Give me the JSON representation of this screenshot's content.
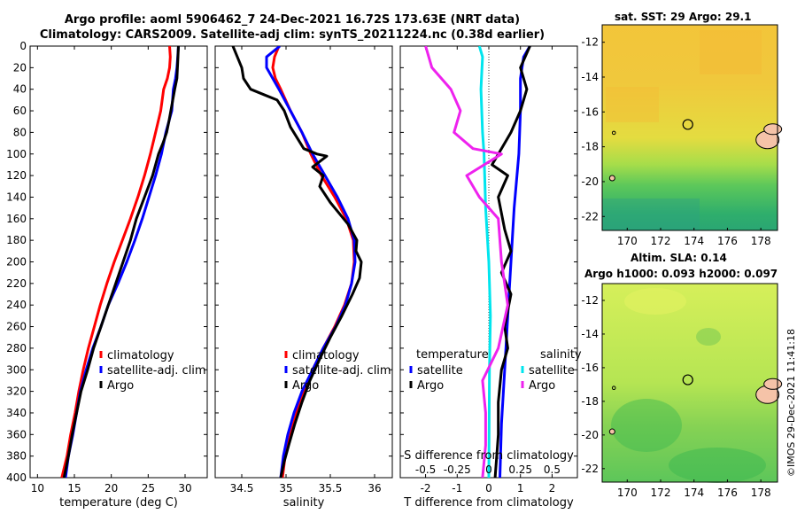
{
  "title_line1": "Argo profile: aoml 5906462_7 24-Dec-2021 16.72S 173.63E (NRT data)",
  "title_line2": "Climatology: CARS2009. Satellite-adj clim: synTS_20211224.nc (0.38d earlier)",
  "copyright": "©IMOS 29-Dec-2021 11:41:18",
  "colors": {
    "climatology": "#ff0000",
    "satellite": "#0000ff",
    "argo": "#000000",
    "t_satellite": "#00e5ee",
    "s_argo": "#ee22ee"
  },
  "chart_data": [
    {
      "type": "line",
      "id": "temperature",
      "xlabel": "temperature (deg C)",
      "ylabel": "",
      "xlim": [
        9,
        33
      ],
      "ylim": [
        400,
        0
      ],
      "xticks": [
        10,
        15,
        20,
        25,
        30
      ],
      "yticks": [
        0,
        20,
        40,
        60,
        80,
        100,
        120,
        140,
        160,
        180,
        200,
        220,
        240,
        260,
        280,
        300,
        320,
        340,
        360,
        380,
        400
      ],
      "legend": [
        "climatology",
        "satellite-adj. clim",
        "Argo"
      ],
      "series": [
        {
          "name": "climatology",
          "color": "#ff0000",
          "points": [
            [
              27.9,
              0
            ],
            [
              28.0,
              10
            ],
            [
              27.9,
              20
            ],
            [
              27.6,
              30
            ],
            [
              27.1,
              40
            ],
            [
              26.7,
              60
            ],
            [
              26.0,
              80
            ],
            [
              25.3,
              100
            ],
            [
              24.5,
              120
            ],
            [
              23.6,
              140
            ],
            [
              22.6,
              160
            ],
            [
              21.5,
              180
            ],
            [
              20.4,
              200
            ],
            [
              19.4,
              220
            ],
            [
              18.5,
              240
            ],
            [
              17.7,
              260
            ],
            [
              16.9,
              280
            ],
            [
              16.2,
              300
            ],
            [
              15.6,
              320
            ],
            [
              15.1,
              340
            ],
            [
              14.5,
              360
            ],
            [
              14.0,
              380
            ],
            [
              13.3,
              400
            ]
          ]
        },
        {
          "name": "satellite-adj. clim",
          "color": "#0000ff",
          "points": [
            [
              29.1,
              0
            ],
            [
              29.0,
              10
            ],
            [
              28.9,
              20
            ],
            [
              28.7,
              30
            ],
            [
              28.4,
              40
            ],
            [
              28.2,
              60
            ],
            [
              27.4,
              80
            ],
            [
              26.8,
              100
            ],
            [
              26.0,
              120
            ],
            [
              25.1,
              140
            ],
            [
              24.2,
              160
            ],
            [
              23.2,
              180
            ],
            [
              22.1,
              200
            ],
            [
              20.9,
              220
            ],
            [
              19.6,
              240
            ],
            [
              18.6,
              260
            ],
            [
              17.5,
              280
            ],
            [
              16.6,
              300
            ],
            [
              15.8,
              320
            ],
            [
              15.3,
              340
            ],
            [
              14.8,
              360
            ],
            [
              14.2,
              380
            ],
            [
              13.8,
              400
            ]
          ]
        },
        {
          "name": "Argo",
          "color": "#000000",
          "points": [
            [
              29.1,
              0
            ],
            [
              29.0,
              15
            ],
            [
              28.9,
              30
            ],
            [
              28.6,
              40
            ],
            [
              28.2,
              55
            ],
            [
              27.8,
              70
            ],
            [
              27.5,
              80
            ],
            [
              27.0,
              90
            ],
            [
              26.4,
              100
            ],
            [
              25.6,
              120
            ],
            [
              24.5,
              140
            ],
            [
              23.4,
              160
            ],
            [
              22.6,
              180
            ],
            [
              21.6,
              200
            ],
            [
              20.6,
              220
            ],
            [
              19.6,
              240
            ],
            [
              18.6,
              260
            ],
            [
              17.6,
              280
            ],
            [
              16.8,
              300
            ],
            [
              15.9,
              320
            ],
            [
              15.3,
              340
            ],
            [
              14.7,
              360
            ],
            [
              14.2,
              380
            ],
            [
              13.6,
              400
            ]
          ]
        }
      ]
    },
    {
      "type": "line",
      "id": "salinity",
      "xlabel": "salinity",
      "xlim": [
        34.2,
        36.2
      ],
      "ylim": [
        400,
        0
      ],
      "xticks": [
        34.5,
        35,
        35.5,
        36
      ],
      "xtick_labels": [
        "34.5",
        "35",
        "35.5",
        "36"
      ],
      "legend": [
        "climatology",
        "satellite-adj. clim",
        "Argo"
      ],
      "series": [
        {
          "name": "climatology",
          "color": "#ff0000",
          "points": [
            [
              34.92,
              0
            ],
            [
              34.87,
              10
            ],
            [
              34.85,
              20
            ],
            [
              34.88,
              30
            ],
            [
              34.94,
              40
            ],
            [
              35.05,
              60
            ],
            [
              35.18,
              80
            ],
            [
              35.28,
              100
            ],
            [
              35.4,
              120
            ],
            [
              35.55,
              140
            ],
            [
              35.68,
              160
            ],
            [
              35.76,
              180
            ],
            [
              35.77,
              200
            ],
            [
              35.74,
              220
            ],
            [
              35.66,
              240
            ],
            [
              35.55,
              260
            ],
            [
              35.42,
              280
            ],
            [
              35.3,
              300
            ],
            [
              35.2,
              320
            ],
            [
              35.12,
              340
            ],
            [
              35.05,
              360
            ],
            [
              34.99,
              380
            ],
            [
              34.96,
              400
            ]
          ]
        },
        {
          "name": "satellite-adj. clim",
          "color": "#0000ff",
          "points": [
            [
              34.93,
              0
            ],
            [
              34.78,
              10
            ],
            [
              34.78,
              20
            ],
            [
              34.85,
              30
            ],
            [
              34.92,
              40
            ],
            [
              35.05,
              60
            ],
            [
              35.18,
              80
            ],
            [
              35.3,
              100
            ],
            [
              35.44,
              120
            ],
            [
              35.58,
              140
            ],
            [
              35.7,
              160
            ],
            [
              35.77,
              180
            ],
            [
              35.78,
              200
            ],
            [
              35.74,
              220
            ],
            [
              35.67,
              240
            ],
            [
              35.56,
              260
            ],
            [
              35.42,
              280
            ],
            [
              35.3,
              300
            ],
            [
              35.18,
              320
            ],
            [
              35.09,
              340
            ],
            [
              35.02,
              360
            ],
            [
              34.97,
              380
            ],
            [
              34.94,
              400
            ]
          ]
        },
        {
          "name": "Argo",
          "color": "#000000",
          "points": [
            [
              34.4,
              0
            ],
            [
              34.45,
              10
            ],
            [
              34.5,
              20
            ],
            [
              34.52,
              30
            ],
            [
              34.6,
              40
            ],
            [
              34.75,
              45
            ],
            [
              34.9,
              50
            ],
            [
              34.98,
              60
            ],
            [
              35.05,
              75
            ],
            [
              35.2,
              95
            ],
            [
              35.35,
              100
            ],
            [
              35.46,
              102
            ],
            [
              35.3,
              112
            ],
            [
              35.42,
              120
            ],
            [
              35.38,
              130
            ],
            [
              35.5,
              145
            ],
            [
              35.6,
              155
            ],
            [
              35.7,
              165
            ],
            [
              35.8,
              180
            ],
            [
              35.79,
              190
            ],
            [
              35.85,
              200
            ],
            [
              35.83,
              215
            ],
            [
              35.75,
              230
            ],
            [
              35.63,
              250
            ],
            [
              35.5,
              270
            ],
            [
              35.38,
              290
            ],
            [
              35.27,
              310
            ],
            [
              35.18,
              330
            ],
            [
              35.1,
              350
            ],
            [
              35.03,
              370
            ],
            [
              34.98,
              385
            ],
            [
              34.94,
              400
            ]
          ]
        }
      ]
    },
    {
      "type": "line",
      "id": "difference",
      "xlabel": "T difference from climatology",
      "xlim": [
        -2.8,
        2.8
      ],
      "ylim": [
        400,
        0
      ],
      "xticks": [
        -2,
        -1,
        0,
        1,
        2
      ],
      "top_label": "S difference from climatology",
      "top_ticks": [
        "-0.5",
        "-0.25",
        "0",
        "0.25",
        "0.5"
      ],
      "legend_temperature": {
        "heading": "temperature",
        "items": [
          "satellite",
          "Argo"
        ]
      },
      "legend_salinity": {
        "heading": "salinity",
        "items": [
          "satellite",
          "Argo"
        ]
      },
      "series": [
        {
          "name": "temperature satellite",
          "color": "#0000ff",
          "points": [
            [
              1.3,
              0
            ],
            [
              1.1,
              10
            ],
            [
              1.0,
              30
            ],
            [
              1.0,
              60
            ],
            [
              0.95,
              100
            ],
            [
              0.8,
              150
            ],
            [
              0.7,
              200
            ],
            [
              0.6,
              250
            ],
            [
              0.5,
              300
            ],
            [
              0.4,
              350
            ],
            [
              0.35,
              400
            ]
          ]
        },
        {
          "name": "temperature Argo",
          "color": "#000000",
          "points": [
            [
              1.3,
              0
            ],
            [
              1.0,
              20
            ],
            [
              1.2,
              40
            ],
            [
              1.0,
              60
            ],
            [
              0.7,
              80
            ],
            [
              0.4,
              95
            ],
            [
              0.1,
              110
            ],
            [
              0.6,
              120
            ],
            [
              0.3,
              140
            ],
            [
              0.5,
              170
            ],
            [
              0.7,
              190
            ],
            [
              0.4,
              210
            ],
            [
              0.7,
              230
            ],
            [
              0.5,
              260
            ],
            [
              0.6,
              280
            ],
            [
              0.4,
              300
            ],
            [
              0.3,
              330
            ],
            [
              0.3,
              360
            ],
            [
              0.2,
              400
            ]
          ]
        },
        {
          "name": "salinity satellite",
          "color": "#00e5ee",
          "points": [
            [
              -0.3,
              0
            ],
            [
              -0.2,
              10
            ],
            [
              -0.25,
              40
            ],
            [
              -0.2,
              80
            ],
            [
              -0.15,
              100
            ],
            [
              -0.1,
              150
            ],
            [
              0.0,
              200
            ],
            [
              0.05,
              250
            ],
            [
              0.02,
              300
            ],
            [
              0.0,
              400
            ]
          ]
        },
        {
          "name": "salinity Argo",
          "color": "#ee22ee",
          "points": [
            [
              -2.0,
              0
            ],
            [
              -1.8,
              20
            ],
            [
              -1.2,
              40
            ],
            [
              -0.9,
              60
            ],
            [
              -1.1,
              80
            ],
            [
              -0.5,
              95
            ],
            [
              0.4,
              100
            ],
            [
              -0.7,
              120
            ],
            [
              -0.3,
              140
            ],
            [
              0.3,
              160
            ],
            [
              0.4,
              200
            ],
            [
              0.6,
              240
            ],
            [
              0.3,
              280
            ],
            [
              -0.2,
              310
            ],
            [
              -0.1,
              340
            ],
            [
              -0.1,
              370
            ],
            [
              -0.2,
              400
            ]
          ]
        }
      ]
    },
    {
      "type": "heatmap",
      "id": "sst_map",
      "title": "sat. SST: 29 Argo: 29.1",
      "xlim": [
        168.5,
        179
      ],
      "ylim": [
        -22.8,
        -11
      ],
      "xticks": [
        170,
        172,
        174,
        176,
        178
      ],
      "yticks": [
        -12,
        -14,
        -16,
        -18,
        -20,
        -22
      ],
      "marker": [
        173.63,
        -16.72
      ]
    },
    {
      "type": "heatmap",
      "id": "sla_map",
      "title": "Altim. SLA: 0.14",
      "subtitle": "Argo h1000: 0.093 h2000: 0.097",
      "xlim": [
        168.5,
        179
      ],
      "ylim": [
        -22.8,
        -11
      ],
      "xticks": [
        170,
        172,
        174,
        176,
        178
      ],
      "yticks": [
        -12,
        -14,
        -16,
        -18,
        -20,
        -22
      ],
      "marker": [
        173.63,
        -16.72
      ]
    }
  ]
}
